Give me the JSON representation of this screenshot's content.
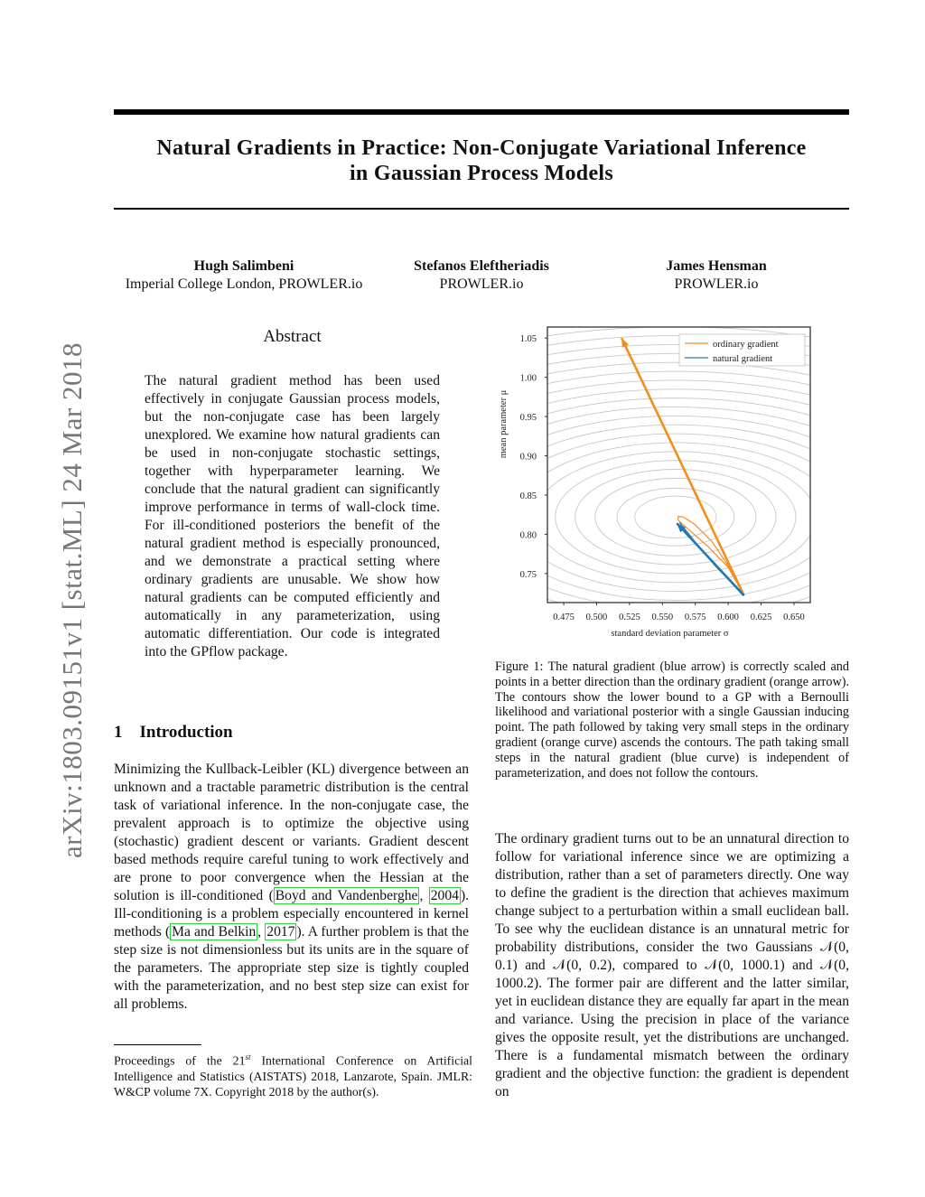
{
  "paper": {
    "title_line1": "Natural Gradients in Practice: Non-Conjugate Variational Inference",
    "title_line2": "in Gaussian Process Models",
    "arxiv_id": "arXiv:1803.09151v1  [stat.ML]  24 Mar 2018",
    "authors": [
      {
        "name": "Hugh Salimbeni",
        "affil": "Imperial College London, PROWLER.io"
      },
      {
        "name": "Stefanos Eleftheriadis",
        "affil": "PROWLER.io"
      },
      {
        "name": "James Hensman",
        "affil": "PROWLER.io"
      }
    ],
    "abstract_heading": "Abstract",
    "abstract": "The natural gradient method has been used effectively in conjugate Gaussian process models, but the non-conjugate case has been largely unexplored. We examine how natural gradients can be used in non-conjugate stochastic settings, together with hyperparameter learning. We conclude that the natural gradient can significantly improve performance in terms of wall-clock time. For ill-conditioned posteriors the benefit of the natural gradient method is especially pronounced, and we demonstrate a practical setting where ordinary gradients are unusable. We show how natural gradients can be computed efficiently and automatically in any parameterization, using automatic differentiation. Our code is integrated into the GPflow package.",
    "section_number": "1",
    "section_title": "Introduction",
    "intro": {
      "t1": "Minimizing the Kullback-Leibler (KL) divergence between an unknown and a tractable parametric distribution is the central task of variational inference. In the non-conjugate case, the prevalent approach is to optimize the objective using (stochastic) gradient descent or variants. Gradient descent based methods require careful tuning to work effectively and are prone to poor convergence when the Hessian at the solution is ill-conditioned (",
      "c1": "Boyd and Vandenberghe",
      "t2": ", ",
      "c2": "2004",
      "t3": "). Ill-conditioning is a problem especially encountered in kernel methods (",
      "c3": "Ma and Belkin",
      "t4": ", ",
      "c4": "2017",
      "t5": "). A further problem is that the step size is not dimensionless but its units are in the square of the parameters. The appropriate step size is tightly coupled with the parameterization, and no best step size can exist for all problems."
    },
    "footnote_a": "Proceedings of the 21",
    "footnote_sup": "st",
    "footnote_b": " International Conference on Artificial Intelligence and Statistics (AISTATS) 2018, Lanzarote, Spain. JMLR: W&CP volume 7X. Copyright 2018 by the author(s).",
    "figure_caption": "Figure 1:  The natural gradient (blue arrow) is correctly scaled and points in a better direction than the ordinary gradient (orange arrow). The contours show the lower bound to a GP with a Bernoulli likelihood and variational posterior with a single Gaussian inducing point. The path followed by taking very small steps in the ordinary gradient (orange curve) ascends the contours. The path taking small steps in the natural gradient (blue curve) is independent of parameterization, and does not follow the contours.",
    "right_para": "The ordinary gradient turns out to be an unnatural direction to follow for variational inference since we are optimizing a distribution, rather than a set of parameters directly. One way to define the gradient is the direction that achieves maximum change subject to a perturbation within a small euclidean ball. To see why the euclidean distance is an unnatural metric for probability distributions, consider the two Gaussians 𝒩(0, 0.1) and 𝒩(0, 0.2), compared to 𝒩(0, 1000.1) and 𝒩(0, 1000.2). The former pair are different and the latter similar, yet in euclidean distance they are equally far apart in the mean and variance. Using the precision in place of the variance gives the opposite result, yet the distributions are unchanged. There is a fundamental mismatch between the ordinary gradient and the objective function: the gradient is dependent on"
  },
  "chart_data": {
    "type": "line",
    "xlabel": "standard deviation parameter σ",
    "ylabel": "mean parameter μ",
    "xlim": [
      0.4626,
      0.6624
    ],
    "ylim": [
      0.713,
      1.064
    ],
    "xticks": [
      "0.475",
      "0.500",
      "0.525",
      "0.550",
      "0.575",
      "0.600",
      "0.625",
      "0.650"
    ],
    "yticks": [
      "0.75",
      "0.80",
      "0.85",
      "0.90",
      "0.95",
      "1.00",
      "1.05"
    ],
    "legend_position": "top-right",
    "contour_center": [
      0.56,
      0.822
    ],
    "contour_color": "#c8c8c8",
    "series": [
      {
        "name": "ordinary gradient",
        "color": "#f28e1c",
        "arrow": {
          "from": [
            0.612,
            0.722
          ],
          "to": [
            0.519,
            1.05
          ]
        },
        "curve": [
          [
            0.612,
            0.722
          ],
          [
            0.6,
            0.76
          ],
          [
            0.588,
            0.79
          ],
          [
            0.575,
            0.812
          ],
          [
            0.566,
            0.822
          ],
          [
            0.562,
            0.823
          ],
          [
            0.562,
            0.818
          ],
          [
            0.57,
            0.806
          ],
          [
            0.585,
            0.784
          ],
          [
            0.6,
            0.758
          ],
          [
            0.612,
            0.722
          ]
        ]
      },
      {
        "name": "natural gradient",
        "color": "#1f77b4",
        "arrow": {
          "from": [
            0.612,
            0.722
          ],
          "to": [
            0.561,
            0.814
          ]
        },
        "curve": [
          [
            0.612,
            0.722
          ],
          [
            0.59,
            0.76
          ],
          [
            0.575,
            0.79
          ],
          [
            0.563,
            0.815
          ]
        ]
      }
    ]
  }
}
